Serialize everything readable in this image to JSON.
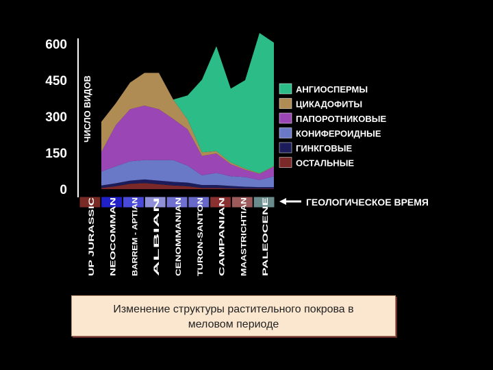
{
  "chart_data": {
    "type": "area",
    "stacked": true,
    "ylabel": "ЧИСЛО ВИДОВ",
    "ylim": [
      0,
      600
    ],
    "yticks": [
      0,
      150,
      300,
      450,
      600
    ],
    "categories": [
      "UP JURASSIC",
      "NEOCOMMAN",
      "BARREM - APTIAN",
      "ALBIAN",
      "CENOMMANIAN",
      "TURON-SANTON",
      "CAMPANIAN",
      "MAASTRICHTIAN",
      "PALEOCENE"
    ],
    "period_colors": [
      "#7a2a24",
      "#2020c8",
      "#4a4ad8",
      "#9090d8",
      "#7070d0",
      "#6868c8",
      "#8a3030",
      "#9c5a5a",
      "#6a8c8c"
    ],
    "x": [
      0,
      1,
      2,
      3,
      4,
      5,
      6,
      7,
      8,
      9,
      10,
      11,
      12
    ],
    "series": [
      {
        "name": "ОСТАЛЬНЫЕ",
        "color": "#7a2828",
        "values": [
          5,
          12,
          22,
          25,
          20,
          15,
          12,
          5,
          5,
          3,
          2,
          2,
          2
        ]
      },
      {
        "name": "ГИНКГОВЫЕ",
        "color": "#1c1c5a",
        "values": [
          10,
          12,
          13,
          15,
          15,
          15,
          15,
          12,
          12,
          10,
          8,
          6,
          6
        ]
      },
      {
        "name": "КОНИФЕРОИДНЫЕ",
        "color": "#6a78c8",
        "values": [
          58,
          70,
          80,
          80,
          85,
          90,
          70,
          40,
          50,
          40,
          40,
          30,
          45
        ]
      },
      {
        "name": "ПАПОРОТНИКОВЫЕ",
        "color": "#9a46b4",
        "values": [
          80,
          170,
          215,
          225,
          210,
          170,
          150,
          80,
          80,
          50,
          30,
          25,
          40
        ]
      },
      {
        "name": "ЦИКАДОФИТЫ",
        "color": "#b08c55",
        "values": [
          125,
          90,
          110,
          135,
          150,
          80,
          40,
          15,
          10,
          7,
          5,
          2,
          2
        ]
      },
      {
        "name": "АНГИОСПЕРМЫ",
        "color": "#2cbc88",
        "values": [
          0,
          0,
          0,
          0,
          0,
          0,
          100,
          300,
          433,
          305,
          365,
          580,
          510
        ]
      }
    ]
  },
  "legend_title_arrow": "ГЕОЛОГИЧЕСКОЕ ВРЕМЯ",
  "caption": {
    "line1": "Изменение структуры растительного покрова в",
    "line2": "меловом периоде"
  }
}
